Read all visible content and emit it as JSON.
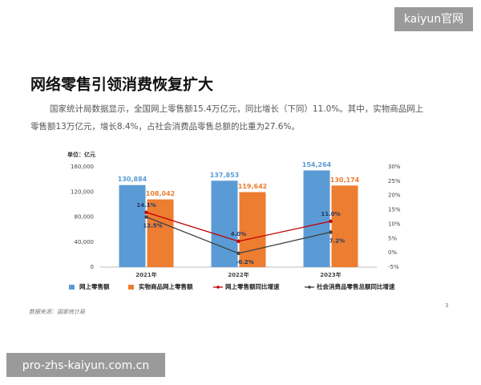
{
  "watermark_top": "kaiyun官网",
  "title": "网络零售引领消费恢复扩大",
  "paragraph": [
    "国家统计局数据显示，全国网上零售额15.4万亿元，同比增长（下同）11.0%。其中，实物商品网上",
    "零售额13万亿元，增长8.4%，占社会消费品零售总额的比重为27.6%。"
  ],
  "chart_data": {
    "type": "bar",
    "unit_label": "单位：亿元",
    "categories": [
      "2021年",
      "2022年",
      "2023年"
    ],
    "series": [
      {
        "name": "网上零售额",
        "type": "bar",
        "color": "#5b9bd5",
        "values": [
          130884,
          137853,
          154264
        ],
        "value_labels": [
          "130,884",
          "137,853",
          "154,264"
        ]
      },
      {
        "name": "实物商品网上零售额",
        "type": "bar",
        "color": "#ed7d31",
        "values": [
          108042,
          119642,
          130174
        ],
        "value_labels": [
          "108,042",
          "119,642",
          "130,174"
        ]
      },
      {
        "name": "网上零售额同比增速",
        "type": "line",
        "axis": "y2",
        "color": "#c00000",
        "values": [
          14.1,
          4.0,
          11.0
        ],
        "value_labels": [
          "14.1%",
          "4.0%",
          "11.0%"
        ]
      },
      {
        "name": "社会消费品零售总额同比增速",
        "type": "line",
        "axis": "y2",
        "color": "#404040",
        "values": [
          12.5,
          -0.2,
          7.2
        ],
        "value_labels": [
          "12.5%",
          "-0.2%",
          "7.2%"
        ]
      }
    ],
    "ylim": [
      0,
      160000
    ],
    "yticks": [
      0,
      {
        "value": 40000,
        "label": "40,000"
      },
      {
        "value": 80000,
        "label": "80,000"
      },
      {
        "value": 120000,
        "label": "120,000"
      },
      {
        "value": 160000,
        "label": "160,000"
      }
    ],
    "y2lim": [
      -5,
      30
    ],
    "y2ticks": [
      {
        "value": -5,
        "label": "-5%"
      },
      {
        "value": 0,
        "label": "0%"
      },
      {
        "value": 5,
        "label": "5%"
      },
      {
        "value": 10,
        "label": "10%"
      },
      {
        "value": 15,
        "label": "15%"
      },
      {
        "value": 20,
        "label": "20%"
      },
      {
        "value": 25,
        "label": "25%"
      },
      {
        "value": 30,
        "label": "30%"
      }
    ],
    "grid": false
  },
  "source": "数据来源：国家统计局",
  "page_number": "3",
  "watermark_bottom": "pro-zhs-kaiyun.com.cn"
}
